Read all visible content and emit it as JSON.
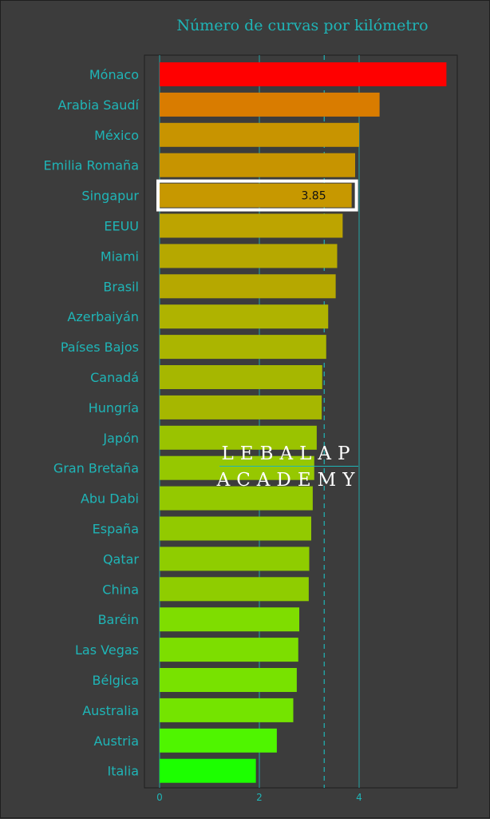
{
  "chart_data": {
    "type": "bar",
    "orientation": "horizontal",
    "title": "Número de curvas por kilómetro",
    "xlabel": "",
    "ylabel": "",
    "categories": [
      "Mónaco",
      "Arabia Saudí",
      "México",
      "Emilia Romaña",
      "Singapur",
      "EEUU",
      "Miami",
      "Brasil",
      "Azerbaiyán",
      "Países Bajos",
      "Canadá",
      "Hungría",
      "Japón",
      "Gran Bretaña",
      "Abu Dabi",
      "España",
      "Qatar",
      "China",
      "Baréin",
      "Las Vegas",
      "Bélgica",
      "Australia",
      "Austria",
      "Italia"
    ],
    "values": [
      5.75,
      4.41,
      4.0,
      3.92,
      3.85,
      3.67,
      3.56,
      3.53,
      3.38,
      3.34,
      3.26,
      3.25,
      3.15,
      3.1,
      3.07,
      3.04,
      3.0,
      2.99,
      2.8,
      2.78,
      2.75,
      2.68,
      2.35,
      1.93
    ],
    "bar_colors": [
      "#ff0000",
      "#d97c00",
      "#c89400",
      "#c79400",
      "#c79800",
      "#bda400",
      "#b6a800",
      "#b6a800",
      "#afb300",
      "#abb500",
      "#a6b700",
      "#a6b700",
      "#9ac300",
      "#96c800",
      "#94c900",
      "#92ca00",
      "#8fcd00",
      "#8fcd00",
      "#7fdd00",
      "#7dde00",
      "#78e200",
      "#74e400",
      "#4ff500",
      "#1cff00"
    ],
    "xlim": [
      -0.3,
      6.1
    ],
    "xticks": [
      "0",
      "2",
      "4"
    ],
    "xtick_values": [
      0,
      2,
      4
    ],
    "grid_x": [
      0,
      2,
      4
    ],
    "reference_line": 3.3,
    "highlight": {
      "category": "Singapur",
      "label": "3.85"
    },
    "grid": true,
    "colors": {
      "background": "#3c3c3c",
      "text": "#1fb5b7",
      "grid": "#1fb5b7",
      "highlight_border": "#ffffff"
    }
  },
  "watermark": {
    "line1": "LEBALAP",
    "line2": "ACADEMY"
  }
}
